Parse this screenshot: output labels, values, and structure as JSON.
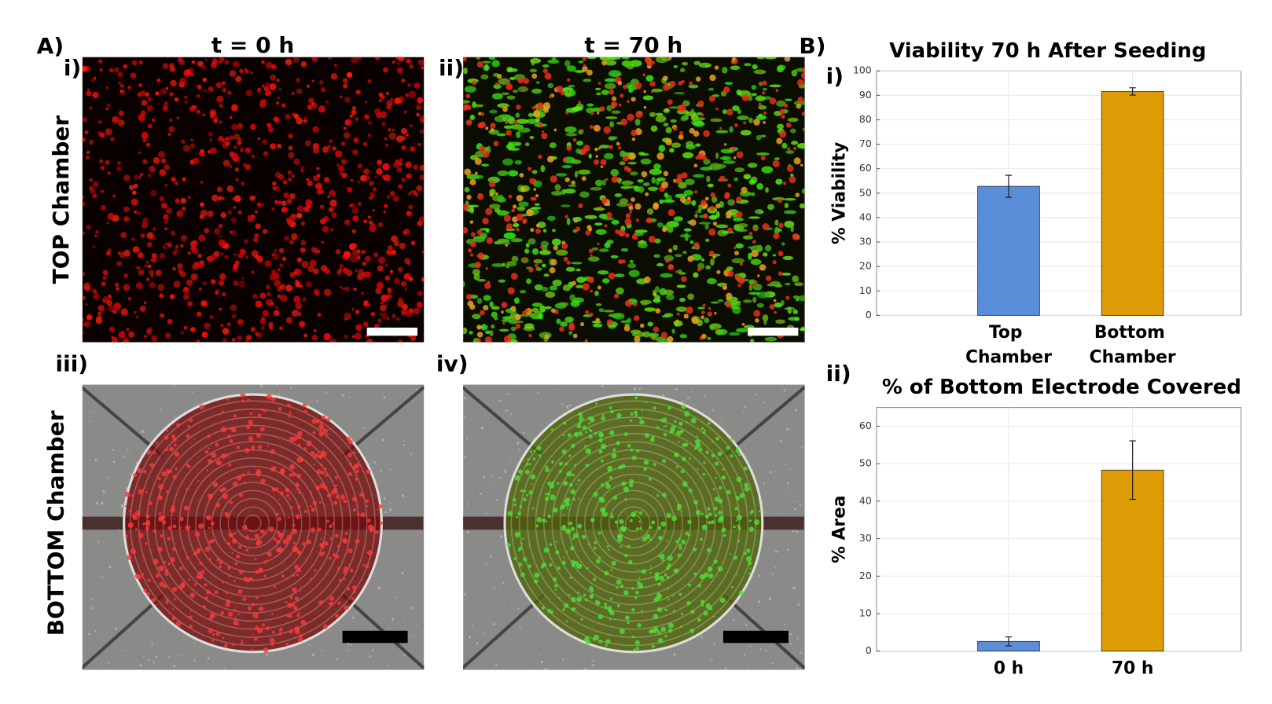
{
  "panel_a": {
    "label": "A)",
    "columns": [
      "t = 0 h",
      "t = 70 h"
    ],
    "rows": [
      "TOP Chamber",
      "BOTTOM Chamber"
    ],
    "sub_labels": [
      "i)",
      "ii)",
      "iii)",
      "iv)"
    ]
  },
  "panel_b": {
    "label": "B)",
    "sub_labels": [
      "i)",
      "ii)"
    ]
  },
  "chart_data": [
    {
      "type": "bar",
      "title": "Viability 70 h After Seeding",
      "y_label": "% Viability",
      "categories": [
        "Top Chamber",
        "Bottom Chamber"
      ],
      "values": [
        52.8,
        91.6
      ],
      "errors": [
        4.5,
        1.5
      ],
      "colors": [
        "#5b8ed8",
        "#dd9b06"
      ],
      "ylim": [
        0,
        100
      ],
      "yticks": [
        0,
        10,
        20,
        30,
        40,
        50,
        60,
        70,
        80,
        90,
        100
      ],
      "grid": true
    },
    {
      "type": "bar",
      "title": "% of Bottom Electrode Covered",
      "y_label": "% Area",
      "categories": [
        "0 h",
        "70 h"
      ],
      "values": [
        2.6,
        48.3
      ],
      "errors": [
        1.2,
        7.8
      ],
      "colors": [
        "#5b8ed8",
        "#dd9b06"
      ],
      "ylim": [
        0,
        65
      ],
      "yticks": [
        0,
        10,
        20,
        30,
        40,
        50,
        60
      ],
      "grid": true
    }
  ]
}
